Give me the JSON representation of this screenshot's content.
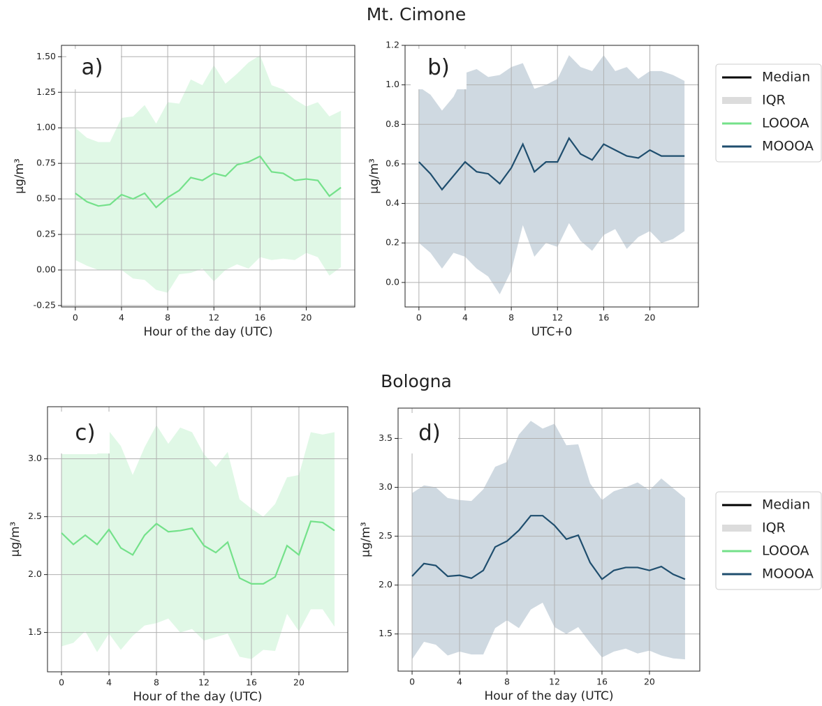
{
  "figure": {
    "titles": [
      "Mt. Cimone",
      "Bologna"
    ],
    "legends": [
      {
        "entries": [
          {
            "label": "Median",
            "color": "#000000"
          },
          {
            "label": "IQR",
            "color": "#dcdcdc"
          },
          {
            "label": "LOOOA",
            "color": "#74e18a"
          },
          {
            "label": "MOOOA",
            "color": "#1f4e6e"
          }
        ]
      },
      {
        "entries": [
          {
            "label": "Median",
            "color": "#000000"
          },
          {
            "label": "IQR",
            "color": "#dcdcdc"
          },
          {
            "label": "LOOOA",
            "color": "#74e18a"
          },
          {
            "label": "MOOOA",
            "color": "#1f4e6e"
          }
        ]
      }
    ]
  },
  "chart_data": [
    {
      "type": "line",
      "panel_label": "a)",
      "xlabel": "Hour of the day (UTC)",
      "ylabel": "µg/m³",
      "grid": true,
      "x": [
        0,
        1,
        2,
        3,
        4,
        5,
        6,
        7,
        8,
        9,
        10,
        11,
        12,
        13,
        14,
        15,
        16,
        17,
        18,
        19,
        20,
        21,
        22,
        23
      ],
      "xlim": [
        -1.2,
        24.2
      ],
      "xticks": [
        0,
        4,
        8,
        12,
        16,
        20
      ],
      "ylim": [
        -0.26,
        1.58
      ],
      "yticks": [
        -0.25,
        {
          "value": 0,
          "label": "0.00"
        },
        0.25,
        {
          "value": 0.5,
          "label": "0.50"
        },
        0.75,
        {
          "value": 1,
          "label": "1.00"
        },
        1.25,
        {
          "value": 1.5,
          "label": "1.50"
        }
      ],
      "series": [
        {
          "color": "#74e18a",
          "band_color": "#e0f8e6",
          "values": [
            0.54,
            0.48,
            0.45,
            0.46,
            0.53,
            0.5,
            0.54,
            0.44,
            0.51,
            0.56,
            0.65,
            0.63,
            0.68,
            0.66,
            0.74,
            0.76,
            0.8,
            0.69,
            0.68,
            0.63,
            0.64,
            0.63,
            0.52,
            0.58
          ],
          "upper": [
            1.0,
            0.93,
            0.9,
            0.9,
            1.07,
            1.08,
            1.16,
            1.03,
            1.18,
            1.17,
            1.34,
            1.3,
            1.44,
            1.31,
            1.38,
            1.46,
            1.51,
            1.3,
            1.27,
            1.2,
            1.15,
            1.18,
            1.08,
            1.12
          ],
          "lower": [
            0.07,
            0.03,
            0.0,
            0.0,
            0.0,
            -0.06,
            -0.07,
            -0.14,
            -0.16,
            -0.03,
            -0.02,
            0.01,
            -0.08,
            0.0,
            0.04,
            0.01,
            0.09,
            0.07,
            0.08,
            0.07,
            0.12,
            0.09,
            -0.04,
            0.02
          ]
        }
      ]
    },
    {
      "type": "line",
      "panel_label": "b)",
      "xlabel": "UTC+0",
      "ylabel": "µg/m³",
      "grid": true,
      "x": [
        0,
        1,
        2,
        3,
        4,
        5,
        6,
        7,
        8,
        9,
        10,
        11,
        12,
        13,
        14,
        15,
        16,
        17,
        18,
        19,
        20,
        21,
        22,
        23
      ],
      "xlim": [
        -1.2,
        24.2
      ],
      "xticks": [
        0,
        4,
        8,
        12,
        16,
        20
      ],
      "ylim": [
        -0.124,
        1.2
      ],
      "yticks": [
        {
          "value": 0,
          "label": "0.0"
        },
        0.2,
        0.4,
        0.6,
        0.8,
        {
          "value": 1,
          "label": "1.0"
        },
        1.2
      ],
      "series": [
        {
          "color": "#1f4e6e",
          "band_color": "#cfd9e1",
          "values": [
            0.61,
            0.55,
            0.47,
            0.54,
            0.61,
            0.56,
            0.55,
            0.5,
            0.58,
            0.7,
            0.56,
            0.61,
            0.61,
            0.73,
            0.65,
            0.62,
            0.7,
            0.67,
            0.64,
            0.63,
            0.67,
            0.64,
            0.64,
            0.64
          ],
          "upper": [
            0.99,
            0.95,
            0.87,
            0.94,
            1.06,
            1.08,
            1.04,
            1.05,
            1.09,
            1.11,
            0.98,
            1.0,
            1.03,
            1.15,
            1.09,
            1.07,
            1.15,
            1.07,
            1.09,
            1.03,
            1.07,
            1.07,
            1.05,
            1.02
          ],
          "lower": [
            0.2,
            0.15,
            0.07,
            0.15,
            0.13,
            0.07,
            0.03,
            -0.06,
            0.06,
            0.29,
            0.13,
            0.2,
            0.18,
            0.3,
            0.21,
            0.16,
            0.24,
            0.27,
            0.17,
            0.23,
            0.26,
            0.2,
            0.22,
            0.26
          ]
        }
      ]
    },
    {
      "type": "line",
      "panel_label": "c)",
      "xlabel": "Hour of the day (UTC)",
      "ylabel": "µg/m³",
      "grid": true,
      "x": [
        0,
        1,
        2,
        3,
        4,
        5,
        6,
        7,
        8,
        9,
        10,
        11,
        12,
        13,
        14,
        15,
        16,
        17,
        18,
        19,
        20,
        21,
        22,
        23
      ],
      "xlim": [
        -1.18,
        24.12
      ],
      "xticks": [
        0,
        4,
        8,
        12,
        16,
        20
      ],
      "ylim": [
        1.16,
        3.45
      ],
      "yticks": [
        1.5,
        {
          "value": 2,
          "label": "2.0"
        },
        2.5,
        {
          "value": 3,
          "label": "3.0"
        }
      ],
      "series": [
        {
          "color": "#74e18a",
          "band_color": "#e0f8e6",
          "values": [
            2.36,
            2.26,
            2.34,
            2.26,
            2.39,
            2.23,
            2.17,
            2.34,
            2.44,
            2.37,
            2.38,
            2.4,
            2.25,
            2.19,
            2.28,
            1.97,
            1.92,
            1.92,
            1.98,
            2.25,
            2.17,
            2.46,
            2.45,
            2.38
          ],
          "upper": [
            3.04,
            3.04,
            3.04,
            3.04,
            3.24,
            3.11,
            2.86,
            3.1,
            3.29,
            3.13,
            3.27,
            3.23,
            3.04,
            2.93,
            3.06,
            2.65,
            2.57,
            2.5,
            2.61,
            2.84,
            2.86,
            3.23,
            3.21,
            3.23
          ],
          "lower": [
            1.38,
            1.41,
            1.51,
            1.33,
            1.49,
            1.35,
            1.47,
            1.56,
            1.58,
            1.62,
            1.5,
            1.53,
            1.43,
            1.46,
            1.49,
            1.29,
            1.27,
            1.35,
            1.34,
            1.66,
            1.51,
            1.7,
            1.7,
            1.55
          ]
        }
      ]
    },
    {
      "type": "line",
      "panel_label": "d)",
      "xlabel": "Hour of the day (UTC)",
      "ylabel": "µg/m³",
      "grid": true,
      "x": [
        0,
        1,
        2,
        3,
        4,
        5,
        6,
        7,
        8,
        9,
        10,
        11,
        12,
        13,
        14,
        15,
        16,
        17,
        18,
        19,
        20,
        21,
        22,
        23
      ],
      "xlim": [
        -1.18,
        24.24
      ],
      "xticks": [
        0,
        4,
        8,
        12,
        16,
        20
      ],
      "ylim": [
        1.12,
        3.81
      ],
      "yticks": [
        1.5,
        {
          "value": 2,
          "label": "2.0"
        },
        2.5,
        {
          "value": 3,
          "label": "3.0"
        },
        3.5
      ],
      "series": [
        {
          "color": "#1f4e6e",
          "band_color": "#cfd9e1",
          "values": [
            2.09,
            2.22,
            2.2,
            2.09,
            2.1,
            2.07,
            2.15,
            2.39,
            2.45,
            2.56,
            2.71,
            2.71,
            2.61,
            2.47,
            2.51,
            2.23,
            2.06,
            2.15,
            2.18,
            2.18,
            2.15,
            2.19,
            2.11,
            2.06
          ],
          "upper": [
            2.94,
            3.02,
            3.0,
            2.89,
            2.87,
            2.86,
            2.98,
            3.21,
            3.26,
            3.54,
            3.68,
            3.6,
            3.65,
            3.43,
            3.44,
            3.04,
            2.87,
            2.96,
            3.0,
            3.05,
            2.97,
            3.09,
            2.99,
            2.89
          ],
          "lower": [
            1.24,
            1.42,
            1.39,
            1.28,
            1.32,
            1.29,
            1.29,
            1.56,
            1.64,
            1.56,
            1.75,
            1.82,
            1.57,
            1.5,
            1.57,
            1.41,
            1.26,
            1.32,
            1.35,
            1.3,
            1.33,
            1.28,
            1.25,
            1.24
          ]
        }
      ]
    }
  ]
}
